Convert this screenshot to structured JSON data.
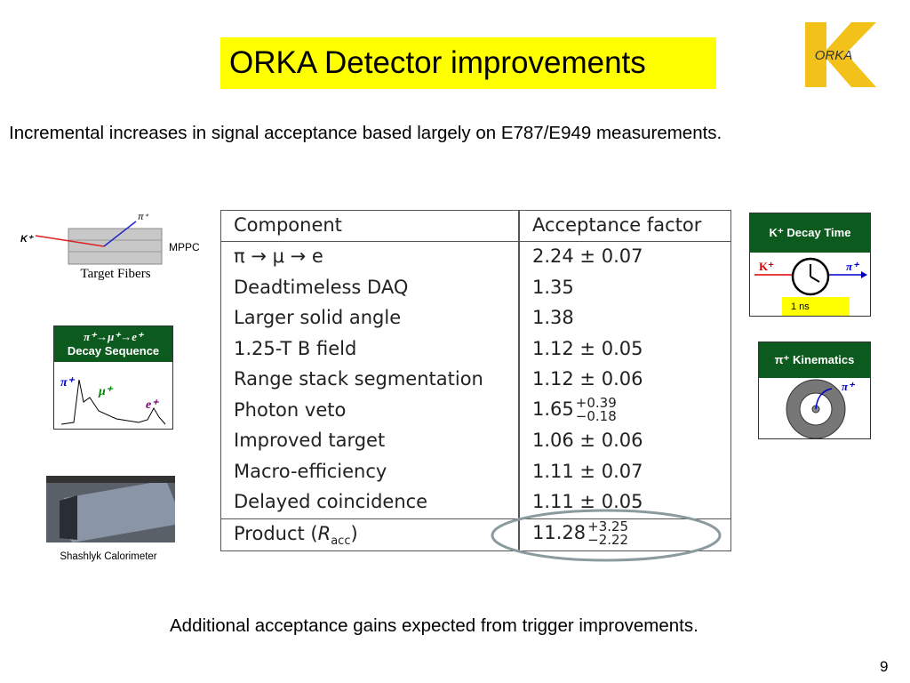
{
  "title": "ORKA Detector improvements",
  "logo": "ORKA",
  "subtitle": "Incremental increases in signal acceptance based largely on E787/E949 measurements.",
  "target_figure": {
    "kaon": "K⁺",
    "pion": "π⁺",
    "sensor": "MPPC",
    "caption": "Target Fibers"
  },
  "decay_sequence": {
    "title_line1": "π⁺→μ⁺→e⁺",
    "title_line2": "Decay Sequence",
    "pion": "π⁺",
    "muon": "μ⁺",
    "positron": "e⁺"
  },
  "calorimeter": {
    "caption": "Shashlyk Calorimeter"
  },
  "table": {
    "header": [
      "Component",
      "Acceptance factor"
    ],
    "rows": [
      {
        "component": "π → μ → e",
        "factor": "2.24 ± 0.07"
      },
      {
        "component": "Deadtimeless DAQ",
        "factor": "1.35"
      },
      {
        "component": "Larger solid angle",
        "factor": "1.38"
      },
      {
        "component": "1.25-T B field",
        "factor": "1.12 ± 0.05"
      },
      {
        "component": "Range stack segmentation",
        "factor": "1.12 ± 0.06"
      },
      {
        "component": "Photon veto",
        "factor": "1.65",
        "upper": "+0.39",
        "lower": "−0.18"
      },
      {
        "component": "Improved target",
        "factor": "1.06 ± 0.06"
      },
      {
        "component": "Macro-efficiency",
        "factor": "1.11 ± 0.07"
      },
      {
        "component": "Delayed coincidence",
        "factor": "1.11 ± 0.05"
      }
    ],
    "total": {
      "component": "Product (",
      "symbol": "R",
      "subscript": "acc",
      "close": ")",
      "factor": "11.28",
      "upper": "+3.25",
      "lower": "−2.22"
    }
  },
  "decay_time": {
    "title": "K⁺ Decay Time",
    "kaon": "K⁺",
    "pion": "π⁺",
    "note": "1 ns"
  },
  "kinematics": {
    "title": "π⁺ Kinematics",
    "pion": "π⁺"
  },
  "footer": "Additional acceptance gains expected  from trigger improvements.",
  "page_number": "9"
}
